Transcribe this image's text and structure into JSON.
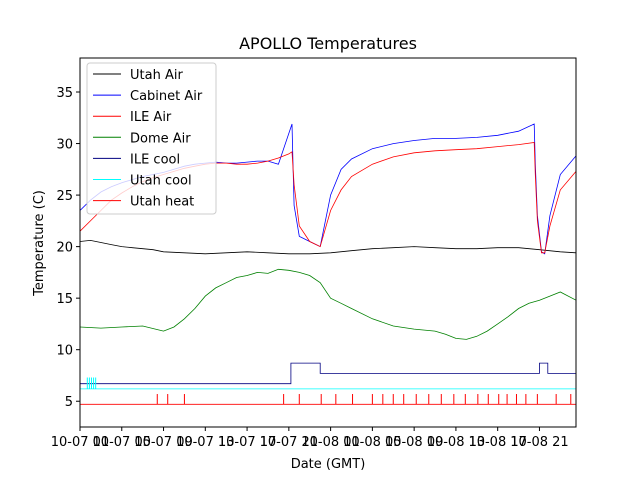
{
  "chart_data": {
    "type": "line",
    "title": "APOLLO Temperatures",
    "xlabel": "Date (GMT)",
    "ylabel": "Temperature (C)",
    "x_unit": "hours since 10-07 00:00",
    "xlim": [
      0,
      47.5
    ],
    "ylim": [
      2.5,
      38.3
    ],
    "yticks": [
      5,
      10,
      15,
      20,
      25,
      30,
      35
    ],
    "xticks": [
      {
        "x": 0,
        "label": "10-07 01"
      },
      {
        "x": 4,
        "label": "10-07 05"
      },
      {
        "x": 8,
        "label": "10-07 09"
      },
      {
        "x": 12,
        "label": "10-07 13"
      },
      {
        "x": 16,
        "label": "10-07 17"
      },
      {
        "x": 20,
        "label": "10-07 21"
      },
      {
        "x": 24,
        "label": "10-08 01"
      },
      {
        "x": 28,
        "label": "10-08 05"
      },
      {
        "x": 32,
        "label": "10-08 09"
      },
      {
        "x": 36,
        "label": "10-08 13"
      },
      {
        "x": 40,
        "label": "10-08 17"
      },
      {
        "x": 44,
        "label": "10-08 21"
      }
    ],
    "legend_position": "upper-left",
    "series": [
      {
        "name": "Utah Air",
        "color": "#000000",
        "x": [
          0,
          1,
          2,
          3,
          4,
          5,
          6,
          7,
          8,
          10,
          12,
          14,
          16,
          18,
          20,
          22,
          24,
          26,
          28,
          30,
          32,
          34,
          36,
          38,
          40,
          42,
          44,
          46,
          47.5
        ],
        "y": [
          20.5,
          20.6,
          20.4,
          20.2,
          20.0,
          19.9,
          19.8,
          19.7,
          19.5,
          19.4,
          19.3,
          19.4,
          19.5,
          19.4,
          19.3,
          19.3,
          19.4,
          19.6,
          19.8,
          19.9,
          20.0,
          19.9,
          19.8,
          19.8,
          19.9,
          19.9,
          19.7,
          19.5,
          19.4
        ]
      },
      {
        "name": "Cabinet Air",
        "color": "#0000ff",
        "x": [
          0,
          1,
          2,
          3,
          4,
          5,
          6,
          7,
          8,
          9,
          10,
          11,
          12,
          13,
          14,
          15,
          16,
          17,
          18,
          19,
          20.3,
          20.4,
          20.5,
          21,
          22,
          23,
          24,
          25,
          26,
          28,
          30,
          32,
          34,
          36,
          38,
          40,
          42,
          43.5,
          43.6,
          43.8,
          44.2,
          44.5,
          45,
          46,
          47.5
        ],
        "y": [
          23.5,
          24.5,
          25.3,
          25.8,
          26.2,
          26.5,
          26.8,
          27.0,
          27.2,
          27.5,
          27.8,
          28.0,
          28.1,
          28.2,
          28.1,
          28.1,
          28.2,
          28.3,
          28.3,
          28.0,
          31.9,
          28.0,
          24.0,
          21.0,
          20.5,
          20.0,
          25.0,
          27.5,
          28.5,
          29.5,
          30.0,
          30.3,
          30.5,
          30.5,
          30.6,
          30.8,
          31.2,
          31.9,
          28.0,
          23.0,
          19.5,
          19.3,
          23.0,
          27.0,
          28.8
        ]
      },
      {
        "name": "ILE Air",
        "color": "#ff0000",
        "x": [
          0,
          1,
          2,
          3,
          4,
          5,
          6,
          7,
          8,
          9,
          10,
          11,
          12,
          13,
          14,
          15,
          16,
          17,
          18,
          19,
          20,
          20.3,
          20.5,
          21,
          22,
          23,
          24,
          25,
          26,
          28,
          30,
          32,
          34,
          36,
          38,
          40,
          42,
          43.5,
          43.6,
          43.8,
          44.2,
          44.5,
          45,
          46,
          47.5
        ],
        "y": [
          21.5,
          22.5,
          23.5,
          24.5,
          25.2,
          25.8,
          26.3,
          26.7,
          27.0,
          27.3,
          27.6,
          27.8,
          28.0,
          28.1,
          28.1,
          28.0,
          28.0,
          28.1,
          28.3,
          28.6,
          29.0,
          29.2,
          26.0,
          22.0,
          20.5,
          20.0,
          23.5,
          25.5,
          26.8,
          28.0,
          28.7,
          29.1,
          29.3,
          29.4,
          29.5,
          29.7,
          29.9,
          30.1,
          27.0,
          22.5,
          19.4,
          19.4,
          22.0,
          25.5,
          27.3
        ]
      },
      {
        "name": "Dome Air",
        "color": "#008000",
        "x": [
          0,
          2,
          4,
          6,
          8,
          9,
          10,
          11,
          12,
          13,
          14,
          15,
          16,
          17,
          18,
          19,
          20,
          21,
          22,
          23,
          24,
          25,
          26,
          28,
          30,
          32,
          34,
          35,
          36,
          37,
          38,
          39,
          40,
          41,
          42,
          43,
          44,
          45,
          46,
          47.5
        ],
        "y": [
          12.2,
          12.1,
          12.2,
          12.3,
          11.8,
          12.2,
          13.0,
          14.0,
          15.2,
          16.0,
          16.5,
          17.0,
          17.2,
          17.5,
          17.4,
          17.8,
          17.7,
          17.5,
          17.2,
          16.5,
          15.0,
          14.5,
          14.0,
          13.0,
          12.3,
          12.0,
          11.8,
          11.5,
          11.1,
          11.0,
          11.3,
          11.8,
          12.5,
          13.2,
          14.0,
          14.5,
          14.8,
          15.2,
          15.6,
          14.8
        ]
      },
      {
        "name": "ILE cool",
        "color": "#000080",
        "x": [
          0,
          14.5,
          15,
          15.5,
          16,
          16.5,
          17,
          17.3,
          20.2,
          20.2,
          23,
          23,
          44,
          44,
          44.8,
          44.8,
          47.5
        ],
        "y": [
          6.7,
          6.7,
          6.7,
          6.7,
          6.7,
          6.7,
          6.7,
          6.7,
          6.7,
          8.7,
          8.7,
          7.7,
          7.7,
          8.7,
          8.7,
          7.7,
          7.7
        ]
      },
      {
        "name": "Utah cool",
        "color": "#00ffff",
        "x": [
          0,
          47.5
        ],
        "y": [
          6.2,
          6.2
        ]
      },
      {
        "name": "Utah heat",
        "color": "#ff0000",
        "x": [
          0,
          47.5
        ],
        "y": [
          4.7,
          4.7
        ]
      }
    ],
    "utah_cool_spikes_x": [
      0.7,
      0.9,
      1.1,
      1.3,
      1.5
    ],
    "utah_heat_spikes_x": [
      7.4,
      8.4,
      10.0,
      19.5,
      21.0,
      23.1,
      24.5,
      26.1,
      28.0,
      29.0,
      30.0,
      31.0,
      32.2,
      33.4,
      34.6,
      35.8,
      36.9,
      38.1,
      39.1,
      40.1,
      40.9,
      41.8,
      42.7,
      43.8,
      45.6,
      47.0
    ]
  }
}
